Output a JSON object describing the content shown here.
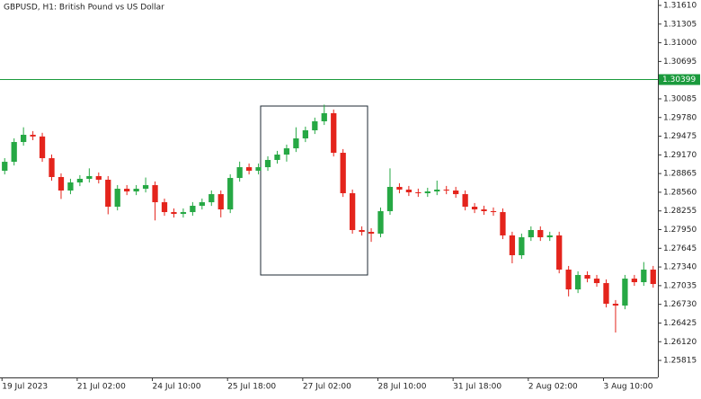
{
  "chart_data": {
    "type": "candlestick",
    "title": "GBPUSD, H1:  British Pound vs US Dollar",
    "up_color": "#26a844",
    "down_color": "#e4241c",
    "ylim": [
      1.25537,
      1.31698
    ],
    "yticks": [
      {
        "value": 1.3161,
        "label": "1.31610"
      },
      1.31305,
      {
        "value": 1.31,
        "label": "1.31000"
      },
      1.30695,
      1.30085,
      {
        "value": 1.2978,
        "label": "1.29780"
      },
      1.29475,
      {
        "value": 1.2917,
        "label": "1.29170"
      },
      1.28865,
      {
        "value": 1.2856,
        "label": "1.28560"
      },
      1.28255,
      {
        "value": 1.2795,
        "label": "1.27950"
      },
      1.27645,
      {
        "value": 1.2734,
        "label": "1.27340"
      },
      1.27035,
      {
        "value": 1.2673,
        "label": "1.26730"
      },
      1.26425,
      {
        "value": 1.2612,
        "label": "1.26120"
      },
      1.25815
    ],
    "xticks": [
      {
        "value": 0,
        "label": "19 Jul 2023"
      },
      {
        "value": 8,
        "label": "21 Jul 02:00"
      },
      {
        "value": 16,
        "label": "24 Jul 10:00"
      },
      {
        "value": 24,
        "label": "25 Jul 18:00"
      },
      {
        "value": 32,
        "label": "27 Jul 02:00"
      },
      {
        "value": 40,
        "label": "28 Jul 10:00"
      },
      {
        "value": 48,
        "label": "31 Jul 18:00"
      },
      {
        "value": 56,
        "label": "2 Aug 02:00"
      },
      {
        "value": 64,
        "label": "3 Aug 10:00"
      }
    ],
    "price_line": {
      "value": 1.30399,
      "color": "#1a9a3c"
    },
    "open": [
      1.28911,
      1.29057,
      1.2938,
      1.29498,
      1.2947,
      1.29116,
      1.28808,
      1.28588,
      1.2872,
      1.28779,
      1.28823,
      1.28764,
      1.28324,
      1.28617,
      1.28573,
      1.28617,
      1.28676,
      1.28397,
      1.28236,
      1.28207,
      1.28236,
      1.28339,
      1.28397,
      1.28529,
      1.2828,
      1.28793,
      1.28969,
      1.28911,
      1.28969,
      1.29087,
      1.29175,
      1.29277,
      1.29439,
      1.29571,
      1.29718,
      1.2985,
      1.29204,
      1.28544,
      1.27943,
      1.27913,
      1.27884,
      1.28251,
      1.28647,
      1.28603,
      1.28559,
      1.28544,
      1.28573,
      1.28603,
      1.28588,
      1.28529,
      1.28324,
      1.2828,
      1.28251,
      1.28236,
      1.27855,
      1.27532,
      1.27825,
      1.27943,
      1.27825,
      1.27855,
      1.27297,
      1.26974,
      1.27209,
      1.2715,
      1.27077,
      1.2674,
      1.2671,
      1.2715,
      1.27092,
      1.27297
    ],
    "high": [
      1.29117,
      1.2944,
      1.2962,
      1.29558,
      1.2953,
      1.29176,
      1.28868,
      1.2878,
      1.28839,
      1.2895,
      1.28883,
      1.28824,
      1.28677,
      1.28677,
      1.28677,
      1.288,
      1.28736,
      1.28457,
      1.28296,
      1.28296,
      1.28399,
      1.28457,
      1.28589,
      1.28589,
      1.28853,
      1.2906,
      1.29029,
      1.29029,
      1.29147,
      1.29235,
      1.29337,
      1.2962,
      1.29631,
      1.29778,
      1.2999,
      1.2991,
      1.29264,
      1.28604,
      1.28003,
      1.27973,
      1.28311,
      1.2895,
      1.28707,
      1.28663,
      1.28619,
      1.28633,
      1.2875,
      1.28663,
      1.28648,
      1.28589,
      1.28384,
      1.2834,
      1.28311,
      1.28296,
      1.27915,
      1.27885,
      1.28003,
      1.28003,
      1.27915,
      1.27915,
      1.27357,
      1.27269,
      1.27269,
      1.2721,
      1.27137,
      1.268,
      1.2721,
      1.2721,
      1.2742,
      1.27357
    ],
    "low": [
      1.28851,
      1.28997,
      1.2932,
      1.2941,
      1.29056,
      1.28748,
      1.2845,
      1.28528,
      1.2866,
      1.28719,
      1.28704,
      1.282,
      1.28264,
      1.28513,
      1.28513,
      1.28557,
      1.281,
      1.28176,
      1.28147,
      1.28147,
      1.28176,
      1.28279,
      1.28337,
      1.2815,
      1.2822,
      1.28733,
      1.28851,
      1.28851,
      1.28909,
      1.29027,
      1.2906,
      1.29217,
      1.29379,
      1.29511,
      1.29658,
      1.29144,
      1.28484,
      1.27883,
      1.27853,
      1.2775,
      1.27824,
      1.28191,
      1.28543,
      1.28499,
      1.28484,
      1.28484,
      1.28513,
      1.28528,
      1.28469,
      1.28264,
      1.2822,
      1.28191,
      1.28176,
      1.27795,
      1.274,
      1.27472,
      1.27765,
      1.27765,
      1.27765,
      1.27237,
      1.2686,
      1.26914,
      1.2709,
      1.27017,
      1.2668,
      1.2627,
      1.2665,
      1.27032,
      1.27032,
      1.27002
    ],
    "close": [
      1.29057,
      1.2938,
      1.29498,
      1.2947,
      1.29116,
      1.28808,
      1.28588,
      1.2872,
      1.28779,
      1.28823,
      1.28764,
      1.28324,
      1.28617,
      1.28573,
      1.28617,
      1.28676,
      1.28397,
      1.28236,
      1.28207,
      1.28236,
      1.28339,
      1.28397,
      1.28529,
      1.2828,
      1.28793,
      1.28969,
      1.28911,
      1.28969,
      1.29087,
      1.29175,
      1.29277,
      1.29439,
      1.29571,
      1.29718,
      1.2985,
      1.29204,
      1.28544,
      1.27943,
      1.27913,
      1.27884,
      1.28251,
      1.28647,
      1.28603,
      1.28559,
      1.28544,
      1.28573,
      1.28603,
      1.28588,
      1.28529,
      1.28324,
      1.2828,
      1.28251,
      1.28236,
      1.27855,
      1.27532,
      1.27825,
      1.27943,
      1.27825,
      1.27855,
      1.27297,
      1.26974,
      1.27209,
      1.2715,
      1.27077,
      1.2674,
      1.2671,
      1.2715,
      1.27092,
      1.27297,
      1.27062
    ]
  }
}
